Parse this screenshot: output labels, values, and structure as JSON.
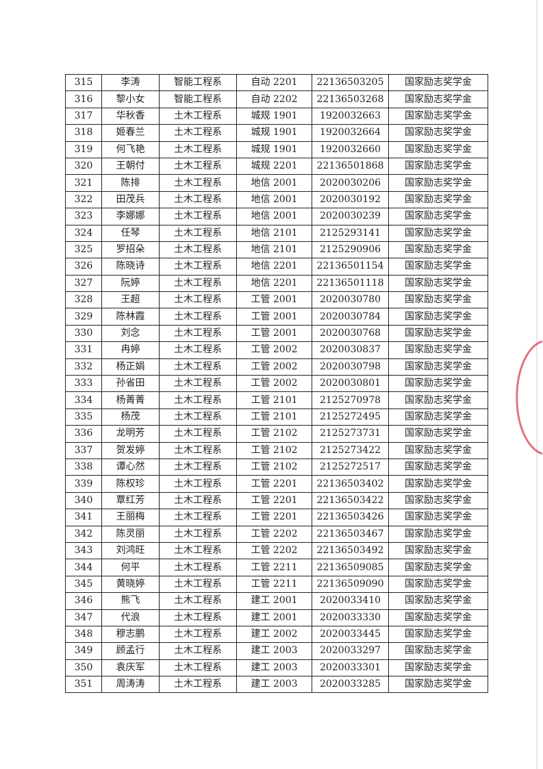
{
  "table": {
    "rows": [
      [
        "315",
        "李涛",
        "智能工程系",
        "自动 2201",
        "22136503205",
        "国家励志奖学金"
      ],
      [
        "316",
        "黎小女",
        "智能工程系",
        "自动 2202",
        "22136503268",
        "国家励志奖学金"
      ],
      [
        "317",
        "华秋香",
        "土木工程系",
        "城规 1901",
        "1920032663",
        "国家励志奖学金"
      ],
      [
        "318",
        "姬春兰",
        "土木工程系",
        "城规 1901",
        "1920032664",
        "国家励志奖学金"
      ],
      [
        "319",
        "何飞艳",
        "土木工程系",
        "城规 1901",
        "1920032660",
        "国家励志奖学金"
      ],
      [
        "320",
        "王朝付",
        "土木工程系",
        "城规 2201",
        "22136501868",
        "国家励志奖学金"
      ],
      [
        "321",
        "陈排",
        "土木工程系",
        "地信 2001",
        "2020030206",
        "国家励志奖学金"
      ],
      [
        "322",
        "田茂兵",
        "土木工程系",
        "地信 2001",
        "2020030192",
        "国家励志奖学金"
      ],
      [
        "323",
        "李娜娜",
        "土木工程系",
        "地信 2001",
        "2020030239",
        "国家励志奖学金"
      ],
      [
        "324",
        "任琴",
        "土木工程系",
        "地信 2101",
        "2125293141",
        "国家励志奖学金"
      ],
      [
        "325",
        "罗招朵",
        "土木工程系",
        "地信 2101",
        "2125290906",
        "国家励志奖学金"
      ],
      [
        "326",
        "陈晓诗",
        "土木工程系",
        "地信 2201",
        "22136501154",
        "国家励志奖学金"
      ],
      [
        "327",
        "阮婷",
        "土木工程系",
        "地信 2201",
        "22136501118",
        "国家励志奖学金"
      ],
      [
        "328",
        "王超",
        "土木工程系",
        "工管 2001",
        "2020030780",
        "国家励志奖学金"
      ],
      [
        "329",
        "陈林霞",
        "土木工程系",
        "工管 2001",
        "2020030784",
        "国家励志奖学金"
      ],
      [
        "330",
        "刘念",
        "土木工程系",
        "工管 2001",
        "2020030768",
        "国家励志奖学金"
      ],
      [
        "331",
        "冉婷",
        "土木工程系",
        "工管 2002",
        "2020030837",
        "国家励志奖学金"
      ],
      [
        "332",
        "杨正娟",
        "土木工程系",
        "工管 2002",
        "2020030798",
        "国家励志奖学金"
      ],
      [
        "333",
        "孙省田",
        "土木工程系",
        "工管 2002",
        "2020030801",
        "国家励志奖学金"
      ],
      [
        "334",
        "杨菁菁",
        "土木工程系",
        "工管 2101",
        "2125270978",
        "国家励志奖学金"
      ],
      [
        "335",
        "杨茂",
        "土木工程系",
        "工管 2101",
        "2125272495",
        "国家励志奖学金"
      ],
      [
        "336",
        "龙明芳",
        "土木工程系",
        "工管 2102",
        "2125273731",
        "国家励志奖学金"
      ],
      [
        "337",
        "贺发婷",
        "土木工程系",
        "工管 2102",
        "2125273422",
        "国家励志奖学金"
      ],
      [
        "338",
        "谭心然",
        "土木工程系",
        "工管 2102",
        "2125272517",
        "国家励志奖学金"
      ],
      [
        "339",
        "陈权珍",
        "土木工程系",
        "工管 2201",
        "22136503402",
        "国家励志奖学金"
      ],
      [
        "340",
        "覃红芳",
        "土木工程系",
        "工管 2201",
        "22136503422",
        "国家励志奖学金"
      ],
      [
        "341",
        "王丽梅",
        "土木工程系",
        "工管 2201",
        "22136503426",
        "国家励志奖学金"
      ],
      [
        "342",
        "陈灵丽",
        "土木工程系",
        "工管 2202",
        "22136503467",
        "国家励志奖学金"
      ],
      [
        "343",
        "刘鸿旺",
        "土木工程系",
        "工管 2202",
        "22136503492",
        "国家励志奖学金"
      ],
      [
        "344",
        "何平",
        "土木工程系",
        "工管 2211",
        "22136509085",
        "国家励志奖学金"
      ],
      [
        "345",
        "黄晓婷",
        "土木工程系",
        "工管 2211",
        "22136509090",
        "国家励志奖学金"
      ],
      [
        "346",
        "熊飞",
        "土木工程系",
        "建工 2001",
        "2020033410",
        "国家励志奖学金"
      ],
      [
        "347",
        "代浪",
        "土木工程系",
        "建工 2001",
        "2020033330",
        "国家励志奖学金"
      ],
      [
        "348",
        "穆志鹏",
        "土木工程系",
        "建工 2002",
        "2020033445",
        "国家励志奖学金"
      ],
      [
        "349",
        "顾孟行",
        "土木工程系",
        "建工 2003",
        "2020033297",
        "国家励志奖学金"
      ],
      [
        "350",
        "袁庆军",
        "土木工程系",
        "建工 2003",
        "2020033301",
        "国家励志奖学金"
      ],
      [
        "351",
        "周涛涛",
        "土木工程系",
        "建工 2003",
        "2020033285",
        "国家励志奖学金"
      ]
    ]
  },
  "seal_color": "#d9435a"
}
